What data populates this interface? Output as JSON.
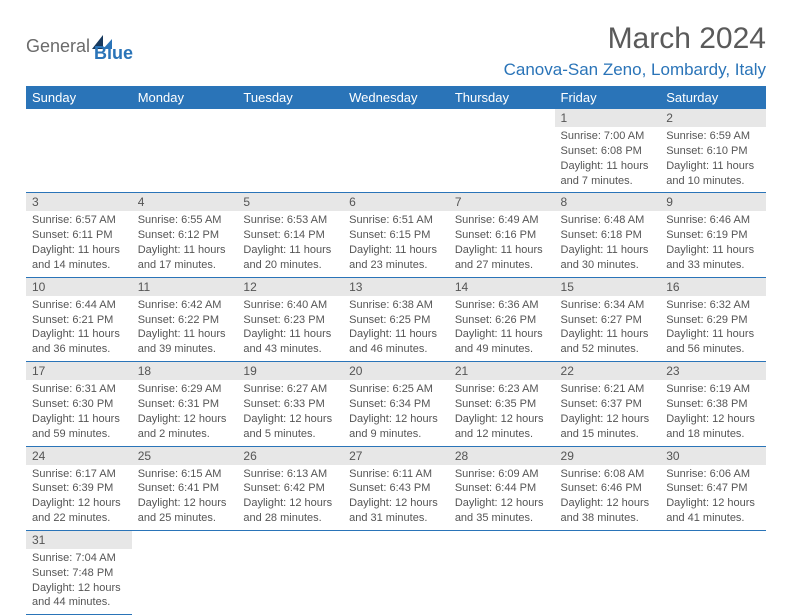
{
  "colors": {
    "brand_blue": "#2a74b8",
    "header_bg": "#2a74b8",
    "header_text": "#ffffff",
    "day_num_bg": "#e7e7e7",
    "text_gray": "#555555",
    "logo_gray": "#6b6b6b",
    "row_divider": "#2a74b8",
    "page_bg": "#ffffff"
  },
  "typography": {
    "title_fontsize": 30,
    "location_fontsize": 17,
    "weekday_fontsize": 13,
    "daynum_fontsize": 12,
    "body_fontsize": 11
  },
  "logo": {
    "text_general": "General",
    "text_blue": "Blue"
  },
  "title": "March 2024",
  "location": "Canova-San Zeno, Lombardy, Italy",
  "weekdays": [
    "Sunday",
    "Monday",
    "Tuesday",
    "Wednesday",
    "Thursday",
    "Friday",
    "Saturday"
  ],
  "calendar": {
    "first_weekday_index": 5,
    "days": [
      {
        "n": 1,
        "sunrise": "7:00 AM",
        "sunset": "6:08 PM",
        "daylight": "11 hours and 7 minutes."
      },
      {
        "n": 2,
        "sunrise": "6:59 AM",
        "sunset": "6:10 PM",
        "daylight": "11 hours and 10 minutes."
      },
      {
        "n": 3,
        "sunrise": "6:57 AM",
        "sunset": "6:11 PM",
        "daylight": "11 hours and 14 minutes."
      },
      {
        "n": 4,
        "sunrise": "6:55 AM",
        "sunset": "6:12 PM",
        "daylight": "11 hours and 17 minutes."
      },
      {
        "n": 5,
        "sunrise": "6:53 AM",
        "sunset": "6:14 PM",
        "daylight": "11 hours and 20 minutes."
      },
      {
        "n": 6,
        "sunrise": "6:51 AM",
        "sunset": "6:15 PM",
        "daylight": "11 hours and 23 minutes."
      },
      {
        "n": 7,
        "sunrise": "6:49 AM",
        "sunset": "6:16 PM",
        "daylight": "11 hours and 27 minutes."
      },
      {
        "n": 8,
        "sunrise": "6:48 AM",
        "sunset": "6:18 PM",
        "daylight": "11 hours and 30 minutes."
      },
      {
        "n": 9,
        "sunrise": "6:46 AM",
        "sunset": "6:19 PM",
        "daylight": "11 hours and 33 minutes."
      },
      {
        "n": 10,
        "sunrise": "6:44 AM",
        "sunset": "6:21 PM",
        "daylight": "11 hours and 36 minutes."
      },
      {
        "n": 11,
        "sunrise": "6:42 AM",
        "sunset": "6:22 PM",
        "daylight": "11 hours and 39 minutes."
      },
      {
        "n": 12,
        "sunrise": "6:40 AM",
        "sunset": "6:23 PM",
        "daylight": "11 hours and 43 minutes."
      },
      {
        "n": 13,
        "sunrise": "6:38 AM",
        "sunset": "6:25 PM",
        "daylight": "11 hours and 46 minutes."
      },
      {
        "n": 14,
        "sunrise": "6:36 AM",
        "sunset": "6:26 PM",
        "daylight": "11 hours and 49 minutes."
      },
      {
        "n": 15,
        "sunrise": "6:34 AM",
        "sunset": "6:27 PM",
        "daylight": "11 hours and 52 minutes."
      },
      {
        "n": 16,
        "sunrise": "6:32 AM",
        "sunset": "6:29 PM",
        "daylight": "11 hours and 56 minutes."
      },
      {
        "n": 17,
        "sunrise": "6:31 AM",
        "sunset": "6:30 PM",
        "daylight": "11 hours and 59 minutes."
      },
      {
        "n": 18,
        "sunrise": "6:29 AM",
        "sunset": "6:31 PM",
        "daylight": "12 hours and 2 minutes."
      },
      {
        "n": 19,
        "sunrise": "6:27 AM",
        "sunset": "6:33 PM",
        "daylight": "12 hours and 5 minutes."
      },
      {
        "n": 20,
        "sunrise": "6:25 AM",
        "sunset": "6:34 PM",
        "daylight": "12 hours and 9 minutes."
      },
      {
        "n": 21,
        "sunrise": "6:23 AM",
        "sunset": "6:35 PM",
        "daylight": "12 hours and 12 minutes."
      },
      {
        "n": 22,
        "sunrise": "6:21 AM",
        "sunset": "6:37 PM",
        "daylight": "12 hours and 15 minutes."
      },
      {
        "n": 23,
        "sunrise": "6:19 AM",
        "sunset": "6:38 PM",
        "daylight": "12 hours and 18 minutes."
      },
      {
        "n": 24,
        "sunrise": "6:17 AM",
        "sunset": "6:39 PM",
        "daylight": "12 hours and 22 minutes."
      },
      {
        "n": 25,
        "sunrise": "6:15 AM",
        "sunset": "6:41 PM",
        "daylight": "12 hours and 25 minutes."
      },
      {
        "n": 26,
        "sunrise": "6:13 AM",
        "sunset": "6:42 PM",
        "daylight": "12 hours and 28 minutes."
      },
      {
        "n": 27,
        "sunrise": "6:11 AM",
        "sunset": "6:43 PM",
        "daylight": "12 hours and 31 minutes."
      },
      {
        "n": 28,
        "sunrise": "6:09 AM",
        "sunset": "6:44 PM",
        "daylight": "12 hours and 35 minutes."
      },
      {
        "n": 29,
        "sunrise": "6:08 AM",
        "sunset": "6:46 PM",
        "daylight": "12 hours and 38 minutes."
      },
      {
        "n": 30,
        "sunrise": "6:06 AM",
        "sunset": "6:47 PM",
        "daylight": "12 hours and 41 minutes."
      },
      {
        "n": 31,
        "sunrise": "7:04 AM",
        "sunset": "7:48 PM",
        "daylight": "12 hours and 44 minutes."
      }
    ]
  },
  "labels": {
    "sunrise": "Sunrise:",
    "sunset": "Sunset:",
    "daylight": "Daylight:"
  }
}
